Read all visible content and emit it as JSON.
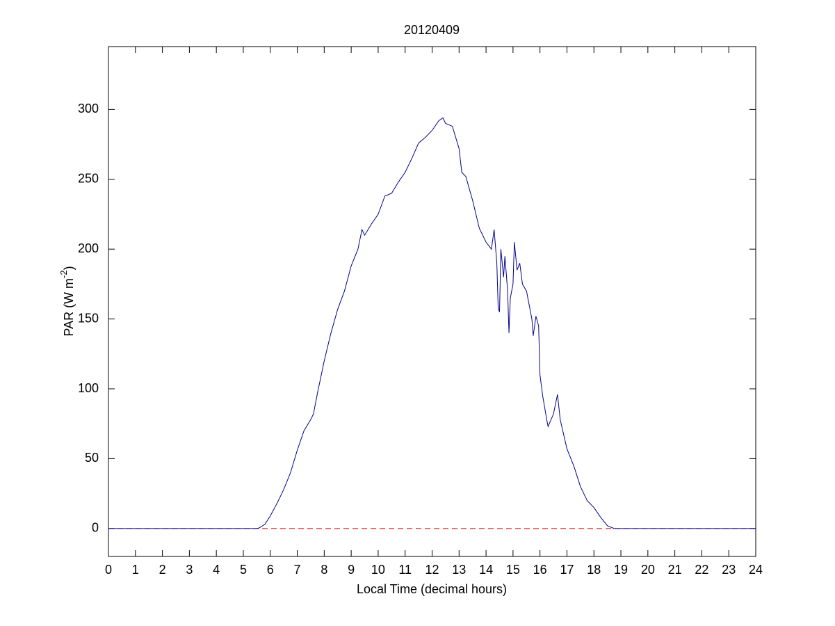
{
  "chart_data": {
    "type": "line",
    "title": "20120409",
    "xlabel": "Local Time (decimal hours)",
    "ylabel": [
      "PAR (W m",
      "-2",
      ")"
    ],
    "xlim": [
      0,
      24
    ],
    "xticks": [
      0,
      1,
      2,
      3,
      4,
      5,
      6,
      7,
      8,
      9,
      10,
      11,
      12,
      13,
      14,
      15,
      16,
      17,
      18,
      19,
      20,
      21,
      22,
      23,
      24
    ],
    "ylim": [
      -20,
      345
    ],
    "yticks": [
      0,
      50,
      100,
      150,
      200,
      250,
      300
    ],
    "grid": false,
    "series": [
      {
        "color": "#00008b",
        "dash": "solid",
        "x": [
          0,
          5.5,
          5.6,
          5.8,
          6.0,
          6.25,
          6.5,
          6.75,
          7.0,
          7.25,
          7.5,
          7.6,
          7.75,
          8.0,
          8.25,
          8.5,
          8.75,
          9.0,
          9.25,
          9.4,
          9.5,
          9.75,
          10.0,
          10.25,
          10.5,
          10.75,
          11.0,
          11.25,
          11.5,
          11.75,
          12.0,
          12.25,
          12.4,
          12.5,
          12.75,
          13.0,
          13.1,
          13.25,
          13.5,
          13.75,
          14.0,
          14.2,
          14.3,
          14.4,
          14.45,
          14.5,
          14.55,
          14.65,
          14.7,
          14.8,
          14.85,
          14.9,
          15.0,
          15.05,
          15.15,
          15.25,
          15.35,
          15.5,
          15.6,
          15.7,
          15.75,
          15.85,
          15.95,
          16.0,
          16.1,
          16.25,
          16.3,
          16.5,
          16.65,
          16.75,
          17.0,
          17.25,
          17.5,
          17.75,
          18.0,
          18.25,
          18.5,
          18.75,
          19,
          24
        ],
        "values": [
          0,
          0,
          0.5,
          3,
          9,
          18,
          28,
          40,
          56,
          70,
          78,
          82,
          97,
          120,
          140,
          157,
          170,
          188,
          200,
          214,
          210,
          218,
          225,
          238,
          240,
          248,
          255,
          265,
          276,
          280,
          285,
          292,
          294,
          290,
          288,
          272,
          255,
          252,
          235,
          215,
          205,
          200,
          214,
          190,
          158,
          155,
          200,
          180,
          195,
          170,
          140,
          165,
          175,
          205,
          185,
          190,
          175,
          170,
          160,
          150,
          138,
          152,
          145,
          110,
          95,
          78,
          73,
          82,
          96,
          78,
          57,
          45,
          30,
          20,
          15,
          8,
          2,
          0,
          0,
          0
        ]
      },
      {
        "color": "#cc0000",
        "dash": "dashed",
        "x": [
          0,
          24
        ],
        "values": [
          0,
          0
        ]
      }
    ]
  }
}
